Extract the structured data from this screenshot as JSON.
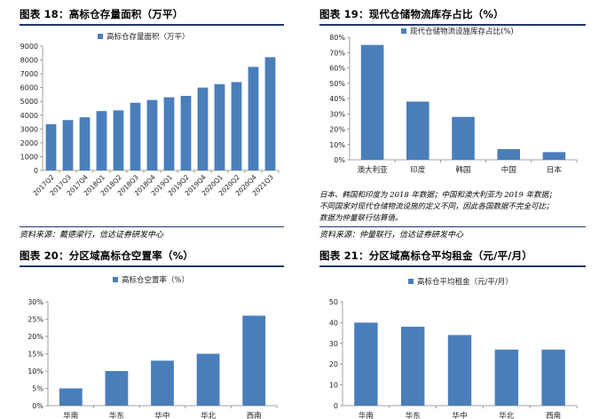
{
  "panels": [
    {
      "title": "图表 18：高标仓存量面积（万平）",
      "source": "资料来源：戴德梁行，信达证券研发中心",
      "chart_data": {
        "type": "bar",
        "legend": "高标仓存量面积（万平）",
        "color": "#4a7ebb",
        "categories": [
          "2017Q2",
          "2017Q3",
          "2017Q4",
          "2018Q1",
          "2018Q2",
          "2018Q3",
          "2018Q4",
          "2019Q1",
          "2019Q2",
          "2019Q4",
          "2020Q1",
          "2020Q2",
          "2020Q4",
          "2021Q3"
        ],
        "values": [
          3350,
          3650,
          3850,
          4300,
          4350,
          4900,
          5100,
          5300,
          5400,
          6000,
          6250,
          6400,
          7500,
          8200
        ],
        "ylim": [
          0,
          9000
        ],
        "yticks": [
          "0",
          "1000",
          "2000",
          "3000",
          "4000",
          "5000",
          "6000",
          "7000",
          "8000",
          "9000"
        ],
        "tick_rotation": -45
      }
    },
    {
      "title": "图表 19：现代仓储物流库存占比（%）",
      "note_lines": [
        "日本、韩国和印度为 2018 年数据；中国和澳大利亚为 2019 年数据；",
        "不同国家对现代仓储物流设施的定义不同，因此各国数据不完全可比；",
        "数据为仲量联行估算值。"
      ],
      "source": "资料来源：仲量联行，信达证券研发中心",
      "chart_data": {
        "type": "bar",
        "legend": "现代仓储物流设施库存占比(%)",
        "color": "#4a7ebb",
        "categories": [
          "澳大利亚",
          "印度",
          "韩国",
          "中国",
          "日本"
        ],
        "values": [
          75,
          38,
          28,
          7,
          5
        ],
        "ylim": [
          0,
          80
        ],
        "yticks": [
          "0%",
          "10%",
          "20%",
          "30%",
          "40%",
          "50%",
          "60%",
          "70%",
          "80%"
        ]
      }
    },
    {
      "title": "图表 20：分区域高标仓空置率（%）",
      "chart_data": {
        "type": "bar",
        "legend": "高标仓空置率（%）",
        "color": "#4a7ebb",
        "categories": [
          "华南",
          "华东",
          "华中",
          "华北",
          "西南"
        ],
        "values": [
          5,
          10,
          13,
          15,
          26
        ],
        "ylim": [
          0,
          30
        ],
        "yticks": [
          "0%",
          "5%",
          "10%",
          "15%",
          "20%",
          "25%",
          "30%"
        ]
      }
    },
    {
      "title": "图表 21：分区域高标仓平均租金（元/平/月）",
      "chart_data": {
        "type": "bar",
        "legend": "高标仓平均租金（元/平/月）",
        "color": "#4a7ebb",
        "categories": [
          "华南",
          "华东",
          "华中",
          "华北",
          "西南"
        ],
        "values": [
          40,
          38,
          34,
          27,
          27
        ],
        "ylim": [
          0,
          50
        ],
        "yticks": [
          "0",
          "10",
          "20",
          "30",
          "40",
          "50"
        ]
      }
    }
  ]
}
